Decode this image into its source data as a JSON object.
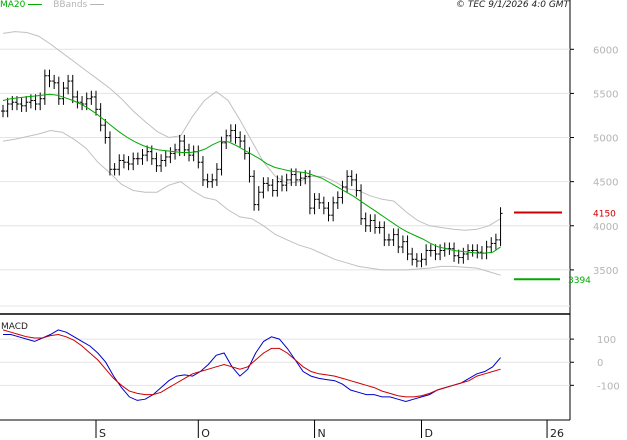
{
  "header": {
    "ma_label": "MA20",
    "bb_label": "BBands",
    "stamp": "© TEC 9/1/2026 4:0 GMT"
  },
  "macd_label": "MACD",
  "colors": {
    "price": "#000000",
    "ma20": "#00aa00",
    "bbands": "#c0c0c0",
    "macd": "#0000cc",
    "signal": "#cc0000",
    "resistance": "#cc0000",
    "support": "#00aa00",
    "grid": "#e4e4e4"
  },
  "chart_data": [
    {
      "type": "line",
      "subtype": "ohlc-bars",
      "panel": "price",
      "y_ticks": [
        "6000",
        "5500",
        "5000",
        "4500",
        "4000",
        "3500"
      ],
      "ylim": [
        3000,
        6400
      ],
      "x_labels": [
        "S",
        "O",
        "N",
        "D",
        "26"
      ],
      "x_label_index": [
        20,
        42,
        67,
        90,
        117
      ],
      "close": [
        5300,
        5380,
        5400,
        5380,
        5360,
        5400,
        5420,
        5380,
        5440,
        5700,
        5640,
        5620,
        5440,
        5560,
        5640,
        5460,
        5400,
        5380,
        5440,
        5460,
        5320,
        5140,
        5000,
        4640,
        4640,
        4740,
        4720,
        4700,
        4760,
        4760,
        4800,
        4840,
        4760,
        4680,
        4740,
        4780,
        4820,
        4860,
        4960,
        4860,
        4800,
        4840,
        4720,
        4520,
        4500,
        4520,
        4640,
        4940,
        5020,
        5080,
        5000,
        4960,
        4820,
        4560,
        4240,
        4380,
        4480,
        4460,
        4400,
        4500,
        4460,
        4520,
        4580,
        4520,
        4540,
        4560,
        4200,
        4300,
        4260,
        4200,
        4120,
        4260,
        4320,
        4440,
        4560,
        4520,
        4400,
        4080,
        4000,
        4060,
        3980,
        3980,
        3840,
        3840,
        3900,
        3760,
        3820,
        3680,
        3620,
        3600,
        3620,
        3720,
        3720,
        3680,
        3720,
        3740,
        3740,
        3660,
        3640,
        3680,
        3720,
        3720,
        3700,
        3690,
        3760,
        3800,
        3840,
        4140
      ],
      "high_low_pad": 70,
      "ma20": [
        5420,
        5440,
        5450,
        5460,
        5470,
        5480,
        5490,
        5480,
        5450,
        5420,
        5380,
        5330,
        5270,
        5200,
        5130,
        5060,
        5000,
        4950,
        4910,
        4880,
        4860,
        4850,
        4840,
        4830,
        4830,
        4840,
        4870,
        4920,
        4960,
        4950,
        4910,
        4860,
        4810,
        4760,
        4700,
        4660,
        4640,
        4620,
        4610,
        4600,
        4570,
        4540,
        4490,
        4440,
        4390,
        4340,
        4280,
        4220,
        4160,
        4100,
        4040,
        3980,
        3930,
        3890,
        3850,
        3800,
        3760,
        3740,
        3720,
        3710,
        3700,
        3690,
        3690,
        3700,
        3760
      ],
      "bb_upper": [
        6180,
        6200,
        6190,
        6150,
        6060,
        5960,
        5860,
        5760,
        5660,
        5560,
        5440,
        5300,
        5180,
        5070,
        5000,
        5020,
        5240,
        5420,
        5520,
        5420,
        5200,
        4960,
        4720,
        4560,
        4480,
        4500,
        4560,
        4560,
        4500,
        4420,
        4400,
        4340,
        4300,
        4280,
        4160,
        4060,
        4000,
        3980,
        3960,
        3950,
        3960,
        4000,
        4080
      ],
      "bb_lower": [
        4960,
        4980,
        5010,
        5040,
        5080,
        5060,
        4980,
        4880,
        4720,
        4600,
        4470,
        4400,
        4380,
        4380,
        4460,
        4500,
        4400,
        4320,
        4290,
        4180,
        4100,
        4080,
        4000,
        3900,
        3840,
        3780,
        3740,
        3680,
        3620,
        3580,
        3540,
        3520,
        3500,
        3500,
        3500,
        3510,
        3520,
        3540,
        3540,
        3530,
        3520,
        3480,
        3440
      ]
    },
    {
      "type": "line",
      "panel": "macd",
      "y_ticks": [
        "100",
        "0",
        "-100"
      ],
      "ylim": [
        -250,
        200
      ],
      "series": [
        {
          "values": [
            120,
            120,
            110,
            100,
            90,
            105,
            120,
            140,
            130,
            110,
            90,
            70,
            40,
            0,
            -60,
            -110,
            -150,
            -165,
            -160,
            -140,
            -110,
            -80,
            -60,
            -55,
            -60,
            -40,
            -10,
            30,
            40,
            -20,
            -60,
            -30,
            40,
            90,
            110,
            100,
            60,
            10,
            -40,
            -60,
            -70,
            -75,
            -80,
            -95,
            -120,
            -130,
            -140,
            -140,
            -150,
            -150,
            -160,
            -170,
            -160,
            -150,
            -140,
            -120,
            -110,
            -100,
            -90,
            -70,
            -50,
            -40,
            -20,
            20
          ]
        },
        {
          "values": [
            140,
            130,
            120,
            110,
            105,
            105,
            115,
            120,
            110,
            95,
            70,
            40,
            10,
            -30,
            -70,
            -100,
            -125,
            -135,
            -140,
            -140,
            -130,
            -110,
            -90,
            -70,
            -50,
            -40,
            -30,
            -20,
            -10,
            -20,
            -30,
            -20,
            10,
            40,
            60,
            60,
            40,
            10,
            -20,
            -40,
            -50,
            -55,
            -60,
            -70,
            -80,
            -90,
            -100,
            -110,
            -125,
            -135,
            -145,
            -150,
            -150,
            -145,
            -135,
            -120,
            -110,
            -100,
            -90,
            -80,
            -60,
            -50,
            -40,
            -30
          ]
        }
      ]
    }
  ],
  "levels": {
    "resistance": {
      "label": "4150",
      "value": 4150
    },
    "support": {
      "label": "3394",
      "value": 3394
    }
  }
}
